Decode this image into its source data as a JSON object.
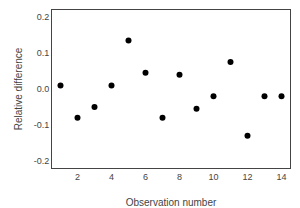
{
  "chart_data": {
    "type": "scatter",
    "x": [
      1,
      2,
      3,
      4,
      5,
      6,
      7,
      8,
      9,
      10,
      11,
      12,
      13,
      14
    ],
    "values": [
      0.01,
      -0.08,
      -0.05,
      0.01,
      0.135,
      0.045,
      -0.08,
      0.04,
      -0.055,
      -0.02,
      0.075,
      -0.13,
      -0.02,
      -0.02
    ],
    "xlabel": "Observation number",
    "ylabel": "Relative difference",
    "xlim": [
      0.5,
      14.5
    ],
    "ylim": [
      -0.22,
      0.22
    ],
    "xticks": [
      2,
      4,
      6,
      8,
      10,
      12,
      14
    ],
    "yticks": [
      -0.2,
      -0.1,
      {
        "value": 0.0,
        "label": "0.0"
      },
      0.1,
      0.2
    ],
    "color": "black",
    "grid": false
  }
}
